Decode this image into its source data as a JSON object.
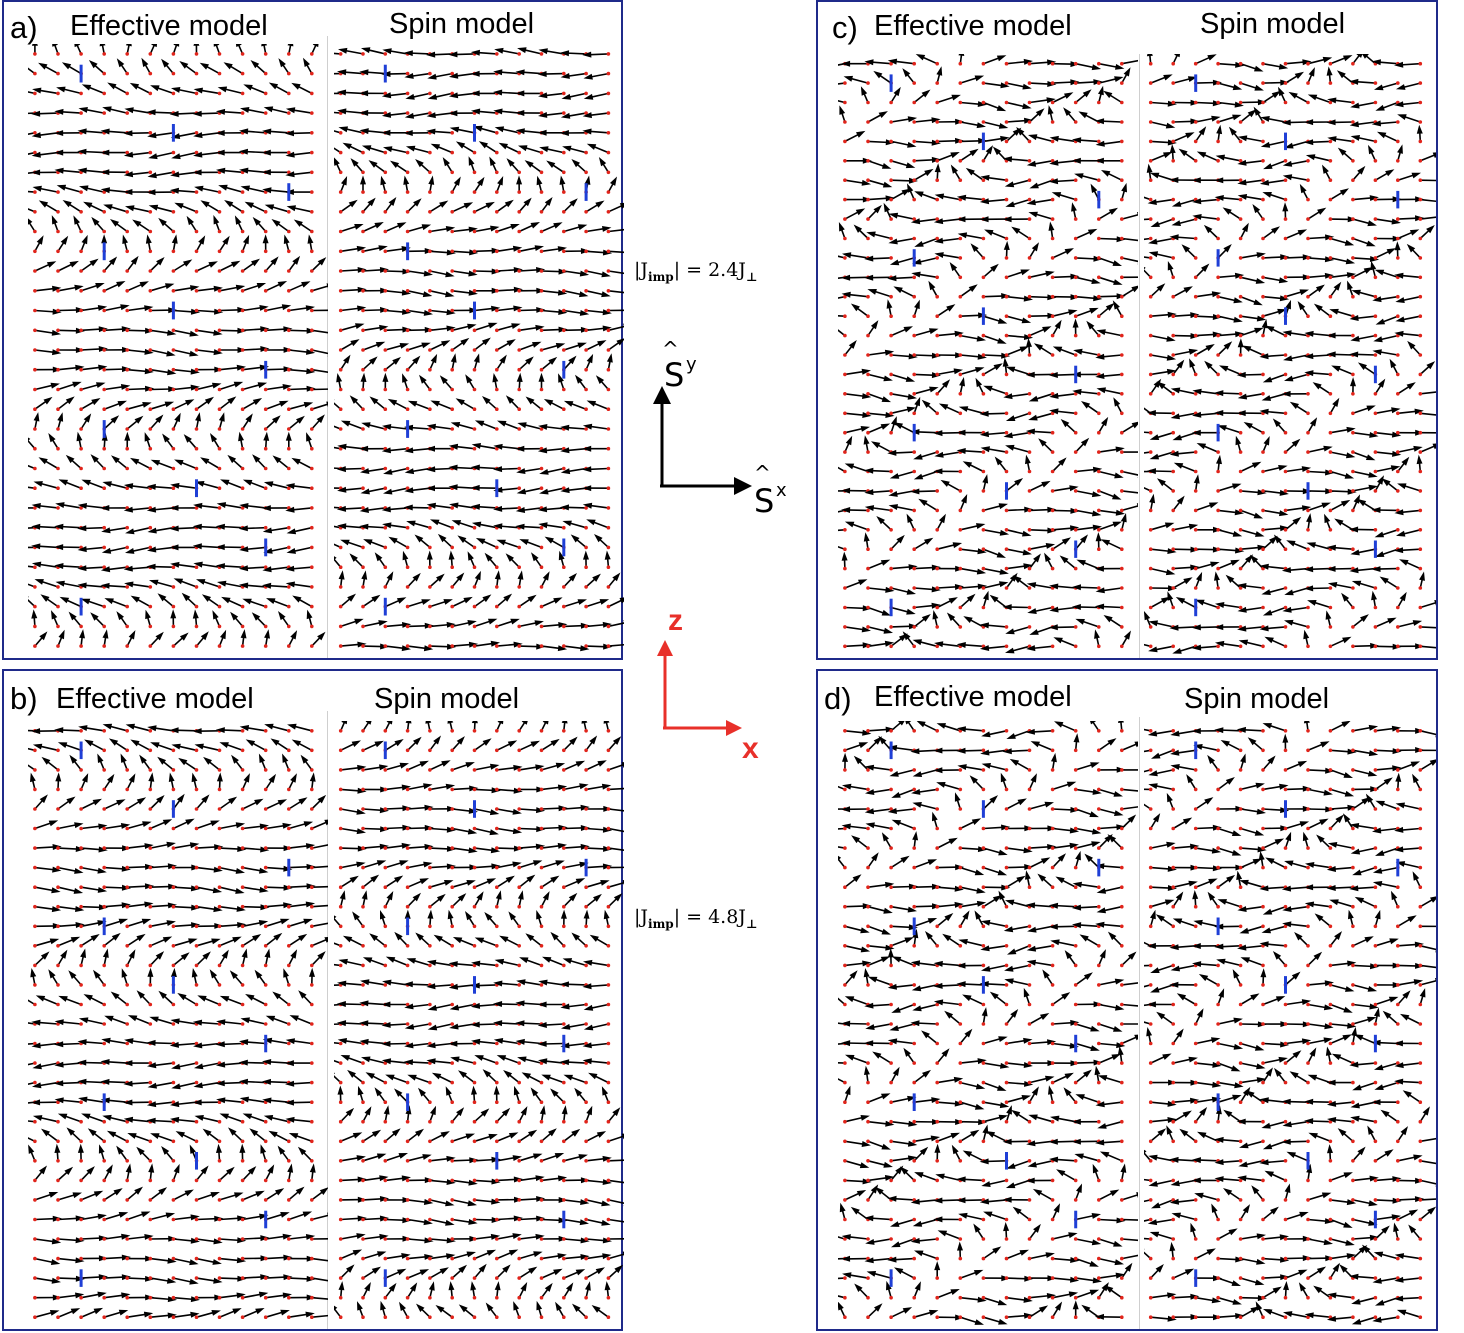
{
  "panels": [
    {
      "id": "a",
      "label": "a)",
      "left_title": "Effective model",
      "right_title": "Spin model",
      "pattern": "a"
    },
    {
      "id": "b",
      "label": "b)",
      "left_title": "Effective model",
      "right_title": "Spin model",
      "pattern": "b"
    },
    {
      "id": "c",
      "label": "c)",
      "left_title": "Effective model",
      "right_title": "Spin model",
      "pattern": "c"
    },
    {
      "id": "d",
      "label": "d)",
      "left_title": "Effective model",
      "right_title": "Spin model",
      "pattern": "d"
    }
  ],
  "coupling_labels": {
    "top": {
      "prefix": "|J",
      "sub": "imp",
      "suffix": "| = 2.4J",
      "perp": "⊥"
    },
    "bottom": {
      "prefix": "|J",
      "sub": "imp",
      "suffix": "| = 4.8J",
      "perp": "⊥"
    }
  },
  "spin_axes": {
    "y_label": "S",
    "y_sup": "y",
    "x_label": "S",
    "x_sup": "x",
    "color": "#000000"
  },
  "real_axes": {
    "z_label": "z",
    "x_label": "x",
    "color": "#e8302a"
  },
  "colors": {
    "frame": "#1f2a8a",
    "arrow": "#000000",
    "site": "#e0241b",
    "impurity": "#1f3fd6"
  }
}
